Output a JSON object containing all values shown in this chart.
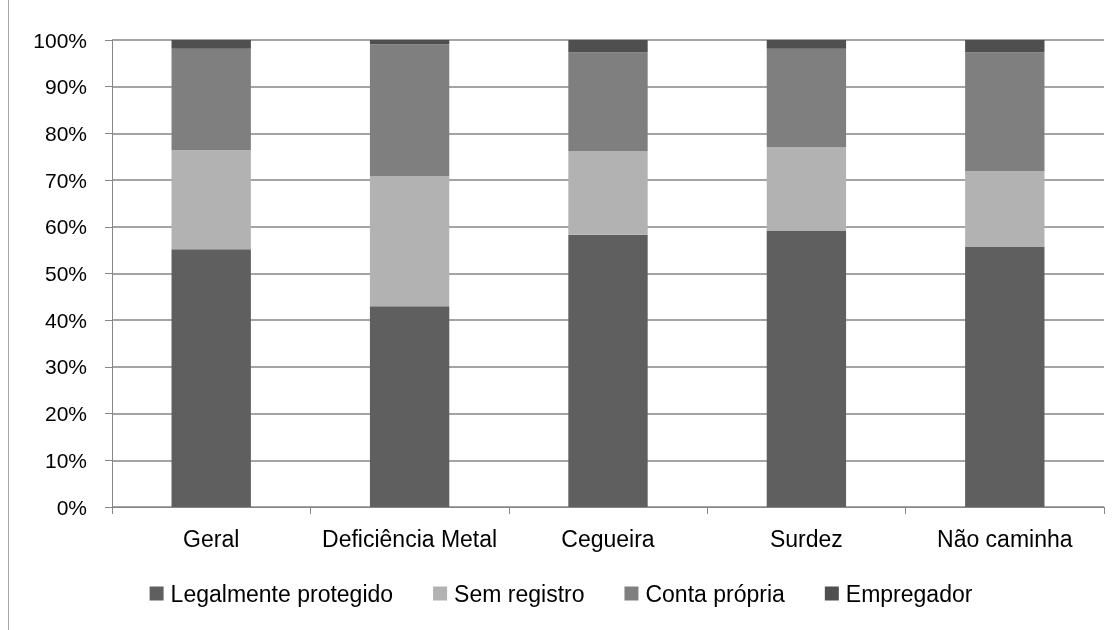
{
  "chart_data": {
    "type": "bar",
    "stacked": true,
    "categories": [
      "Geral",
      "Deficiência Metal",
      "Cegueira",
      "Surdez",
      "Não caminha"
    ],
    "series": [
      {
        "name": "Legalmente protegido",
        "color": "#5f5f5f",
        "values": [
          55.2,
          43.0,
          58.3,
          59.2,
          55.7
        ]
      },
      {
        "name": "Sem registro",
        "color": "#b2b2b2",
        "values": [
          21.2,
          27.9,
          17.9,
          17.9,
          16.2
        ]
      },
      {
        "name": "Conta própria",
        "color": "#7f7f7f",
        "values": [
          21.7,
          28.2,
          21.2,
          21.0,
          25.5
        ]
      },
      {
        "name": "Empregador",
        "color": "#4f4f4f",
        "values": [
          1.9,
          0.9,
          2.6,
          1.9,
          2.6
        ]
      }
    ],
    "ylim": [
      0,
      100
    ],
    "yticks": [
      {
        "value": 0,
        "label": "0%"
      },
      {
        "value": 10,
        "label": "10%"
      },
      {
        "value": 20,
        "label": "20%"
      },
      {
        "value": 30,
        "label": "30%"
      },
      {
        "value": 40,
        "label": "40%"
      },
      {
        "value": 50,
        "label": "50%"
      },
      {
        "value": 60,
        "label": "60%"
      },
      {
        "value": 70,
        "label": "70%"
      },
      {
        "value": 80,
        "label": "80%"
      },
      {
        "value": 90,
        "label": "90%"
      },
      {
        "value": 100,
        "label": "100%"
      }
    ],
    "grid": true,
    "legend": "bottom"
  }
}
